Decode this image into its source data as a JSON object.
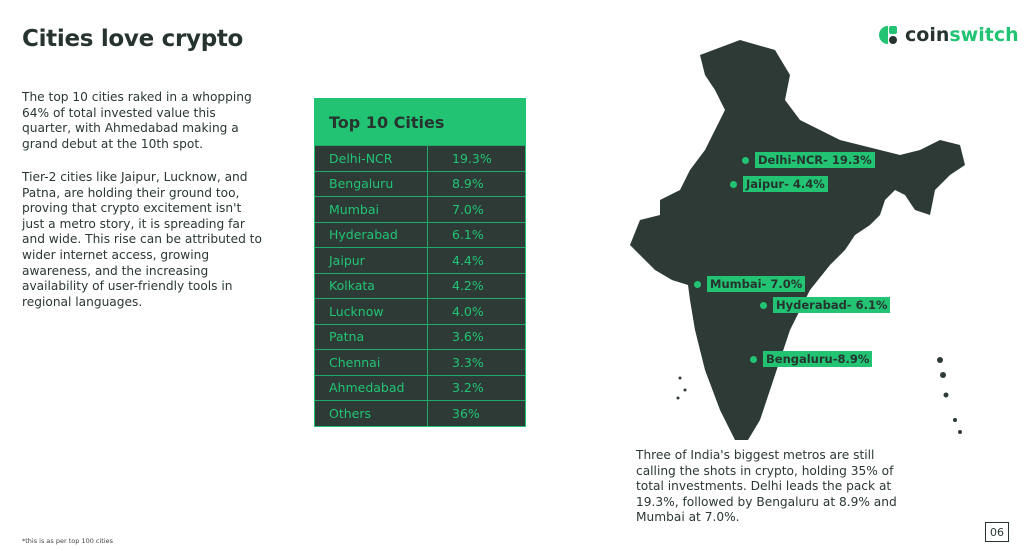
{
  "title": "Cities love crypto",
  "logo": {
    "part1": "coin",
    "part2": "switch"
  },
  "paragraphs": [
    "The top 10 cities raked in a whopping 64% of total invested value this quarter, with Ahmedabad making a grand debut at the 10th spot.",
    "Tier-2 cities like Jaipur, Lucknow, and Patna, are holding their ground too, proving that crypto excitement isn't just a metro story, it is spreading far and wide. This rise can be attributed to wider internet access, growing awareness, and the increasing availability of user-friendly tools in regional languages."
  ],
  "table": {
    "title": "Top 10 Cities",
    "rows": [
      {
        "city": "Delhi-NCR",
        "share": "19.3%"
      },
      {
        "city": "Bengaluru",
        "share": "8.9%"
      },
      {
        "city": "Mumbai",
        "share": "7.0%"
      },
      {
        "city": "Hyderabad",
        "share": "6.1%"
      },
      {
        "city": "Jaipur",
        "share": "4.4%"
      },
      {
        "city": "Kolkata",
        "share": "4.2%"
      },
      {
        "city": "Lucknow",
        "share": "4.0%"
      },
      {
        "city": "Patna",
        "share": "3.6%"
      },
      {
        "city": "Chennai",
        "share": "3.3%"
      },
      {
        "city": "Ahmedabad",
        "share": "3.2%"
      },
      {
        "city": "Others",
        "share": "36%"
      }
    ]
  },
  "map_labels": [
    "Delhi-NCR- 19.3%",
    "Jaipur- 4.4%",
    "Mumbai- 7.0%",
    "Hyderabad- 6.1%",
    "Bengaluru-8.9%"
  ],
  "map_note": "Three of India's biggest metros are still calling the shots in crypto, holding 35% of total investments. Delhi leads the pack at 19.3%, followed by Bengaluru at 8.9% and Mumbai at 7.0%.",
  "footnote": "*this is as per top 100 cities",
  "page_number": "06",
  "colors": {
    "green": "#22c474",
    "dark": "#2d3a36"
  }
}
